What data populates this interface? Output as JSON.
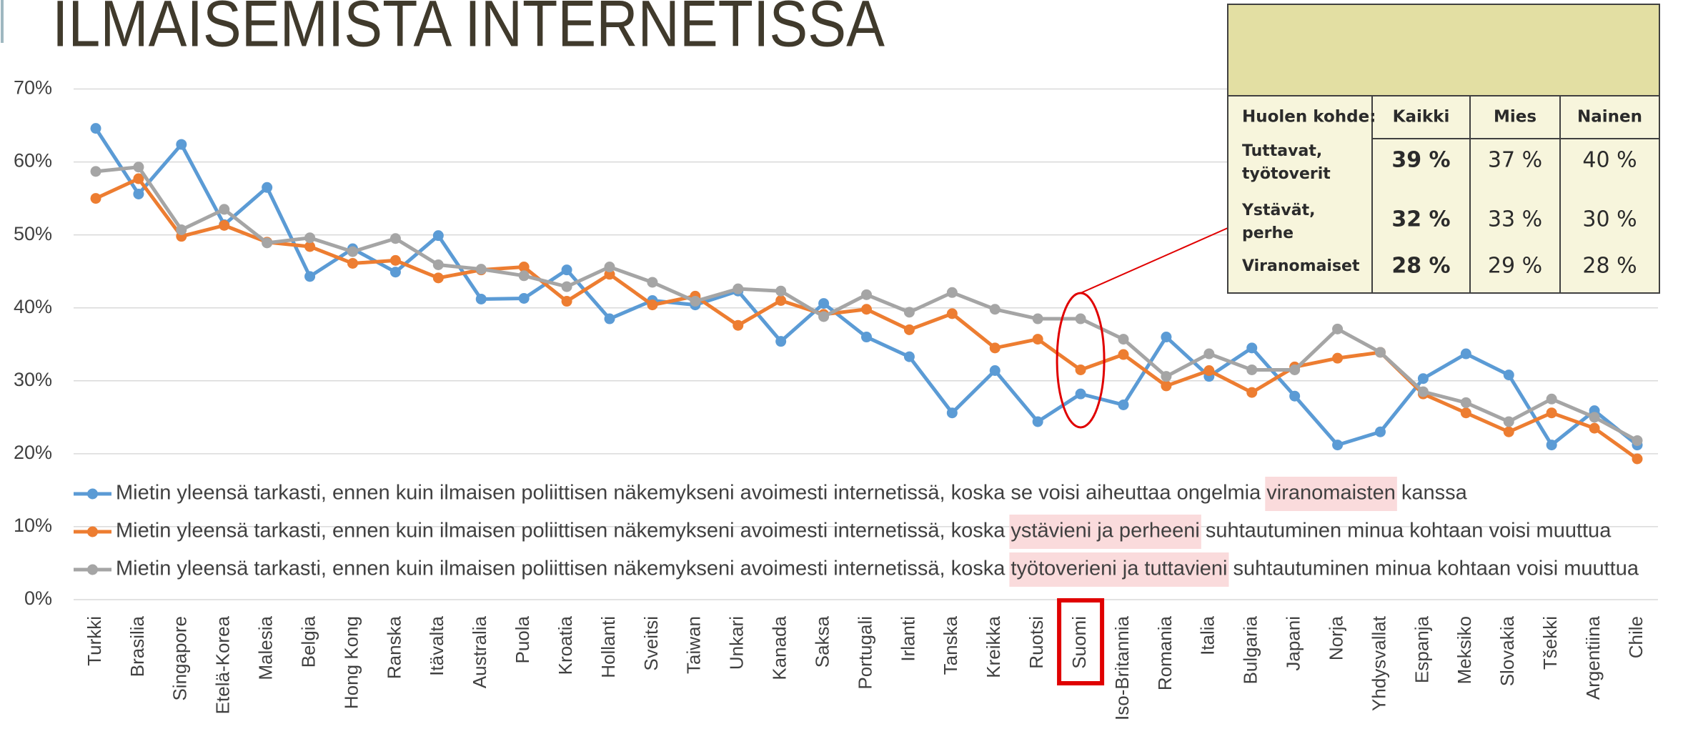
{
  "chart_data": {
    "type": "line",
    "title": "ILMAISEMISTA INTERNETISSA",
    "categories": [
      "Turkki",
      "Brasilia",
      "Singapore",
      "Etelä-Korea",
      "Malesia",
      "Belgia",
      "Hong Kong",
      "Ranska",
      "Itävalta",
      "Australia",
      "Puola",
      "Kroatia",
      "Hollanti",
      "Sveitsi",
      "Taiwan",
      "Unkari",
      "Kanada",
      "Saksa",
      "Portugali",
      "Irlanti",
      "Tanska",
      "Kreikka",
      "Ruotsi",
      "Suomi",
      "Iso-Britannia",
      "Romania",
      "Italia",
      "Bulgaria",
      "Japani",
      "Norja",
      "Yhdysvallat",
      "Espanja",
      "Meksiko",
      "Slovakia",
      "Tšekki",
      "Argentiina",
      "Chile"
    ],
    "series": [
      {
        "name": "Mietin yleensä tarkasti, ennen kuin ilmaisen poliittisen näkemykseni avoimesti internetissä, koska se voisi aiheuttaa ongelmia viranomaisten kanssa",
        "highlight": "viranomaisten",
        "color": "#5b9bd5",
        "values": [
          64.6,
          55.6,
          62.4,
          51.4,
          56.5,
          44.3,
          48.1,
          44.9,
          49.9,
          41.2,
          41.3,
          45.2,
          38.5,
          41.0,
          40.4,
          42.3,
          35.4,
          40.6,
          36.0,
          33.3,
          25.6,
          31.4,
          24.4,
          28.2,
          26.7,
          36.0,
          30.6,
          34.5,
          27.9,
          21.2,
          23.0,
          30.3,
          33.7,
          30.8,
          21.2,
          25.9,
          21.2
        ]
      },
      {
        "name": "Mietin yleensä tarkasti, ennen kuin ilmaisen poliittisen näkemykseni avoimesti internetissä, koska ystävieni ja perheeni suhtautuminen minua kohtaan voisi muuttua",
        "highlight": "ystävieni ja perheeni",
        "color": "#ed7d31",
        "values": [
          55.0,
          57.7,
          49.8,
          51.3,
          49.0,
          48.4,
          46.1,
          46.5,
          44.1,
          45.2,
          45.6,
          40.9,
          44.6,
          40.4,
          41.6,
          37.6,
          41.0,
          39.1,
          39.8,
          37.0,
          39.2,
          34.5,
          35.7,
          31.5,
          33.6,
          29.3,
          31.4,
          28.4,
          31.9,
          33.1,
          33.9,
          28.2,
          25.6,
          23.0,
          25.6,
          23.5,
          19.3
        ]
      },
      {
        "name": "Mietin yleensä tarkasti, ennen kuin ilmaisen poliittisen näkemykseni avoimesti internetissä, koska työtoverieni ja tuttavieni suhtautuminen minua kohtaan voisi muuttua",
        "highlight": "työtoverieni ja tuttavieni",
        "color": "#a5a5a5",
        "values": [
          58.7,
          59.3,
          50.7,
          53.5,
          48.9,
          49.6,
          47.7,
          49.5,
          45.9,
          45.3,
          44.4,
          42.9,
          45.6,
          43.5,
          40.9,
          42.6,
          42.3,
          38.8,
          41.8,
          39.4,
          42.1,
          39.8,
          38.5,
          38.5,
          35.7,
          30.6,
          33.7,
          31.5,
          31.5,
          37.1,
          33.9,
          28.5,
          27.0,
          24.4,
          27.5,
          25.0,
          21.8
        ]
      }
    ],
    "ylim": [
      0,
      70
    ],
    "yticks": [
      {
        "value": 0,
        "label": "0%"
      },
      {
        "value": 10,
        "label": "10%"
      },
      {
        "value": 20,
        "label": "20%"
      },
      {
        "value": 30,
        "label": "30%"
      },
      {
        "value": 40,
        "label": "40%"
      },
      {
        "value": 50,
        "label": "50%"
      },
      {
        "value": 60,
        "label": "60%"
      },
      {
        "value": 70,
        "label": "70%"
      }
    ],
    "grid": true
  },
  "table": {
    "header": [
      "Huolen kohde:",
      "Kaikki",
      "Mies",
      "Nainen"
    ],
    "rows": [
      [
        "Tuttavat, työtoverit",
        "39 %",
        "37 %",
        "40 %"
      ],
      [
        "Ystävät, perhe",
        "32 %",
        "33 %",
        "30 %"
      ],
      [
        "Viranomaiset",
        "28 %",
        "29 %",
        "28 %"
      ]
    ]
  }
}
